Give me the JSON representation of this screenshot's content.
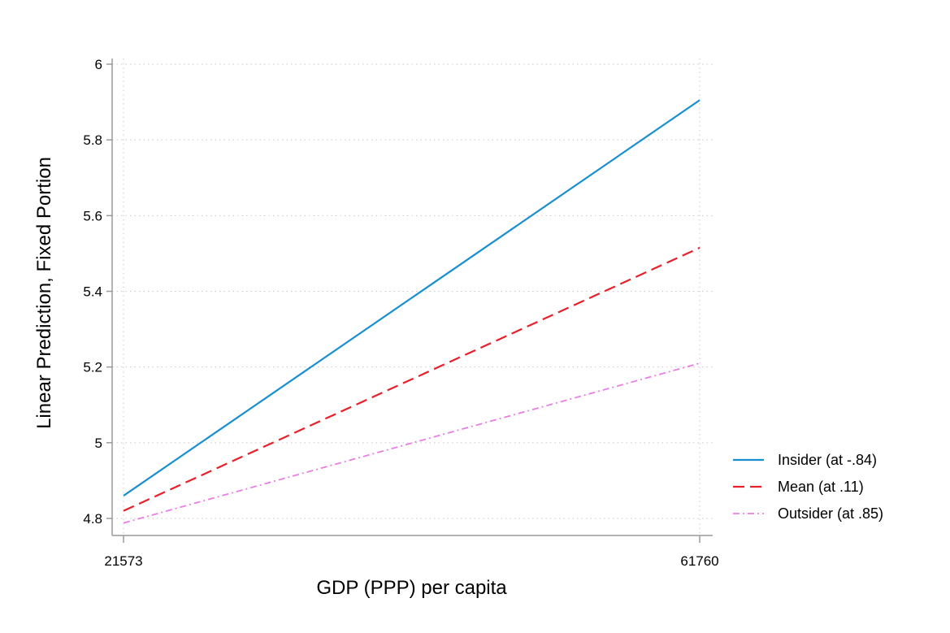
{
  "chart_data": {
    "type": "line",
    "xlabel": "GDP (PPP) per capita",
    "ylabel": "Linear Prediction, Fixed Portion",
    "x": [
      21573,
      61760
    ],
    "xticks": [
      "21573",
      "61760"
    ],
    "xlim": [
      21573,
      61760
    ],
    "ylim": [
      4.8,
      6.0
    ],
    "yticks": [
      "4.8",
      "5",
      "5.2",
      "5.4",
      "5.6",
      "5.8",
      "6"
    ],
    "grid": true,
    "legend_position": "right",
    "series": [
      {
        "name": "Insider (at -.84)",
        "values": [
          4.86,
          5.905
        ],
        "color": "#1a8fcf",
        "dash": "solid"
      },
      {
        "name": "Mean (at .11)",
        "values": [
          4.82,
          5.515
        ],
        "color": "#e8202a",
        "dash": "dash"
      },
      {
        "name": "Outsider (at .85)",
        "values": [
          4.788,
          5.21
        ],
        "color": "#ea7de6",
        "dash": "dashdot"
      }
    ]
  }
}
